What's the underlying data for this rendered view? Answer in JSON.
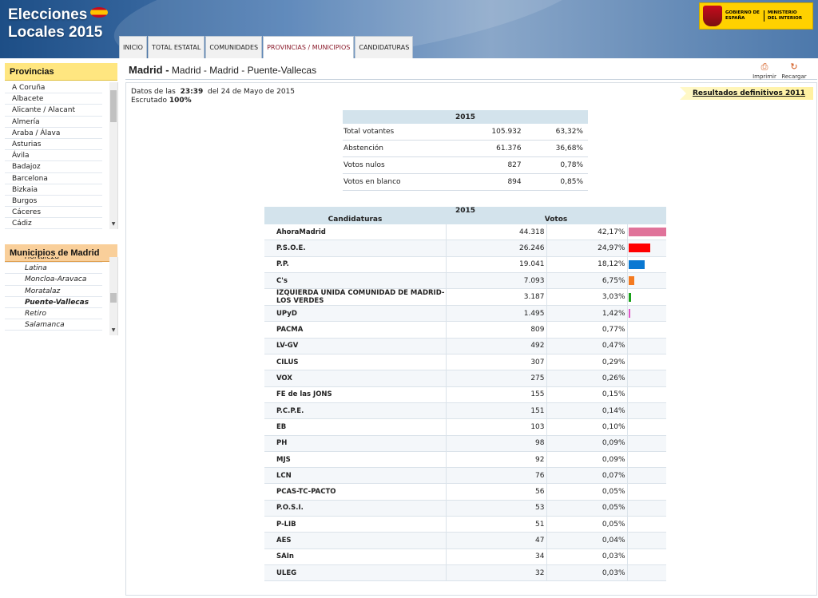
{
  "header": {
    "title_line1": "Elecciones",
    "title_line2": "Locales 2015",
    "gov_text1": "GOBIERNO DE ESPAÑA",
    "gov_text2": "MINISTERIO DEL INTERIOR"
  },
  "tabs": [
    {
      "label": "INICIO"
    },
    {
      "label": "TOTAL ESTATAL"
    },
    {
      "label": "COMUNIDADES"
    },
    {
      "label": "PROVINCIAS / MUNICIPIOS",
      "active": true
    },
    {
      "label": "CANDIDATURAS"
    }
  ],
  "sidebar": {
    "provinces_title": "Provincias",
    "provinces": [
      "A Coruña",
      "Albacete",
      "Alicante / Alacant",
      "Almería",
      "Araba / Álava",
      "Asturias",
      "Ávila",
      "Badajoz",
      "Barcelona",
      "Bizkaia",
      "Burgos",
      "Cáceres",
      "Cádiz"
    ],
    "municipalities_title": "Municipios de Madrid",
    "municipalities": [
      "Hortaleza",
      "Latina",
      "Moncloa-Aravaca",
      "Moratalaz",
      "Puente-Vallecas",
      "Retiro",
      "Salamanca"
    ],
    "selected_municipality": "Puente-Vallecas"
  },
  "breadcrumb": {
    "main": "Madrid -",
    "rest": "Madrid - Madrid - Puente-Vallecas"
  },
  "actions": {
    "print_label": "Imprimir",
    "reload_label": "Recargar"
  },
  "status": {
    "data_prefix": "Datos de las",
    "time": "23:39",
    "date_text": "del 24 de Mayo de 2015",
    "scrutiny_label": "Escrutado",
    "scrutiny_value": "100%"
  },
  "previous_results_link": "Resultados definitivos 2011",
  "summary": {
    "year": "2015",
    "rows": [
      {
        "label": "Total votantes",
        "count": "105.932",
        "pct": "63,32%"
      },
      {
        "label": "Abstención",
        "count": "61.376",
        "pct": "36,68%"
      },
      {
        "label": "Votos nulos",
        "count": "827",
        "pct": "0,78%"
      },
      {
        "label": "Votos en blanco",
        "count": "894",
        "pct": "0,85%"
      }
    ]
  },
  "results": {
    "year": "2015",
    "col_candidates": "Candidaturas",
    "col_votes": "Votos",
    "rows": [
      {
        "name": "AhoraMadrid",
        "votes": "44.318",
        "pct": "42,17%",
        "share": 42.17,
        "color": "#e0739a"
      },
      {
        "name": "P.S.O.E.",
        "votes": "26.246",
        "pct": "24,97%",
        "share": 24.97,
        "color": "#ff0000"
      },
      {
        "name": "P.P.",
        "votes": "19.041",
        "pct": "18,12%",
        "share": 18.12,
        "color": "#0a78d2"
      },
      {
        "name": "C's",
        "votes": "7.093",
        "pct": "6,75%",
        "share": 6.75,
        "color": "#f47a20"
      },
      {
        "name": "IZQUIERDA UNIDA COMUNIDAD DE MADRID-LOS VERDES",
        "votes": "3.187",
        "pct": "3,03%",
        "share": 3.03,
        "color": "#1aa11a"
      },
      {
        "name": "UPyD",
        "votes": "1.495",
        "pct": "1,42%",
        "share": 1.42,
        "color": "#e055c8"
      },
      {
        "name": "PACMA",
        "votes": "809",
        "pct": "0,77%"
      },
      {
        "name": "LV-GV",
        "votes": "492",
        "pct": "0,47%"
      },
      {
        "name": "CILUS",
        "votes": "307",
        "pct": "0,29%"
      },
      {
        "name": "VOX",
        "votes": "275",
        "pct": "0,26%"
      },
      {
        "name": "FE de las JONS",
        "votes": "155",
        "pct": "0,15%"
      },
      {
        "name": "P.C.P.E.",
        "votes": "151",
        "pct": "0,14%"
      },
      {
        "name": "EB",
        "votes": "103",
        "pct": "0,10%"
      },
      {
        "name": "PH",
        "votes": "98",
        "pct": "0,09%"
      },
      {
        "name": "MJS",
        "votes": "92",
        "pct": "0,09%"
      },
      {
        "name": "LCN",
        "votes": "76",
        "pct": "0,07%"
      },
      {
        "name": "PCAS-TC-PACTO",
        "votes": "56",
        "pct": "0,05%"
      },
      {
        "name": "P.O.S.I.",
        "votes": "53",
        "pct": "0,05%"
      },
      {
        "name": "P-LIB",
        "votes": "51",
        "pct": "0,05%"
      },
      {
        "name": "AES",
        "votes": "47",
        "pct": "0,04%"
      },
      {
        "name": "SAIn",
        "votes": "34",
        "pct": "0,03%"
      },
      {
        "name": "ULEG",
        "votes": "32",
        "pct": "0,03%"
      }
    ]
  }
}
